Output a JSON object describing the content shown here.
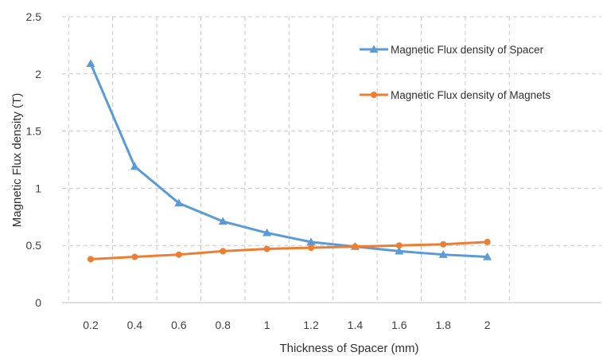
{
  "chart_data": {
    "type": "line",
    "title": "",
    "xlabel": "Thickness of Spacer (mm)",
    "ylabel": "Magnetic Flux density (T)",
    "x": [
      0.2,
      0.4,
      0.6,
      0.8,
      1,
      1.2,
      1.4,
      1.6,
      1.8,
      2
    ],
    "x_tick_labels": [
      "0.2",
      "0.4",
      "0.6",
      "0.8",
      "1",
      "1.2",
      "1.4",
      "1.6",
      "1.8",
      "2"
    ],
    "ylim": [
      0,
      2.5
    ],
    "y_ticks": [
      0,
      0.5,
      1,
      1.5,
      2,
      2.5
    ],
    "y_tick_labels": [
      "0",
      "0.5",
      "1",
      "1.5",
      "2",
      "2.5"
    ],
    "grid": true,
    "legend_position": "right",
    "series": [
      {
        "name": "Magnetic Flux density of Spacer",
        "color": "#5B9BD5",
        "marker": "triangle",
        "values": [
          2.09,
          1.19,
          0.87,
          0.71,
          0.61,
          0.53,
          0.49,
          0.45,
          0.42,
          0.4
        ]
      },
      {
        "name": "Magnetic Flux density of Magnets",
        "color": "#ED7D31",
        "marker": "circle",
        "values": [
          0.38,
          0.4,
          0.42,
          0.45,
          0.47,
          0.48,
          0.49,
          0.5,
          0.51,
          0.53
        ]
      }
    ]
  }
}
